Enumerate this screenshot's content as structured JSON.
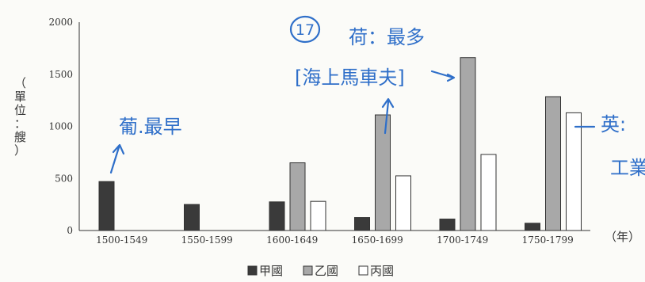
{
  "chart_data": {
    "type": "bar",
    "categories": [
      "1500-1549",
      "1550-1599",
      "1600-1649",
      "1650-1699",
      "1700-1749",
      "1750-1799"
    ],
    "series": [
      {
        "name": "甲國",
        "values": [
          470,
          250,
          275,
          125,
          110,
          70
        ],
        "color": "#3a3a3a"
      },
      {
        "name": "乙國",
        "values": [
          0,
          0,
          650,
          1110,
          1660,
          1285
        ],
        "color": "#a8a8a8"
      },
      {
        "name": "丙國",
        "values": [
          0,
          0,
          280,
          525,
          730,
          1130
        ],
        "color": "#ffffff"
      }
    ],
    "ylim": [
      0,
      2000
    ],
    "yticks": [
      0,
      500,
      1000,
      1500,
      2000
    ],
    "ylabel": "（單位：艘）",
    "xunit": "（年）",
    "grid": false,
    "legend_position": "bottom"
  },
  "annotations": {
    "circle_number": "17",
    "note_netherlands": "荷：最多",
    "note_sea_carriage": "[海上馬車夫]",
    "note_dutch_early": "葡.最早",
    "note_england": "英:",
    "note_industry": "工業"
  }
}
